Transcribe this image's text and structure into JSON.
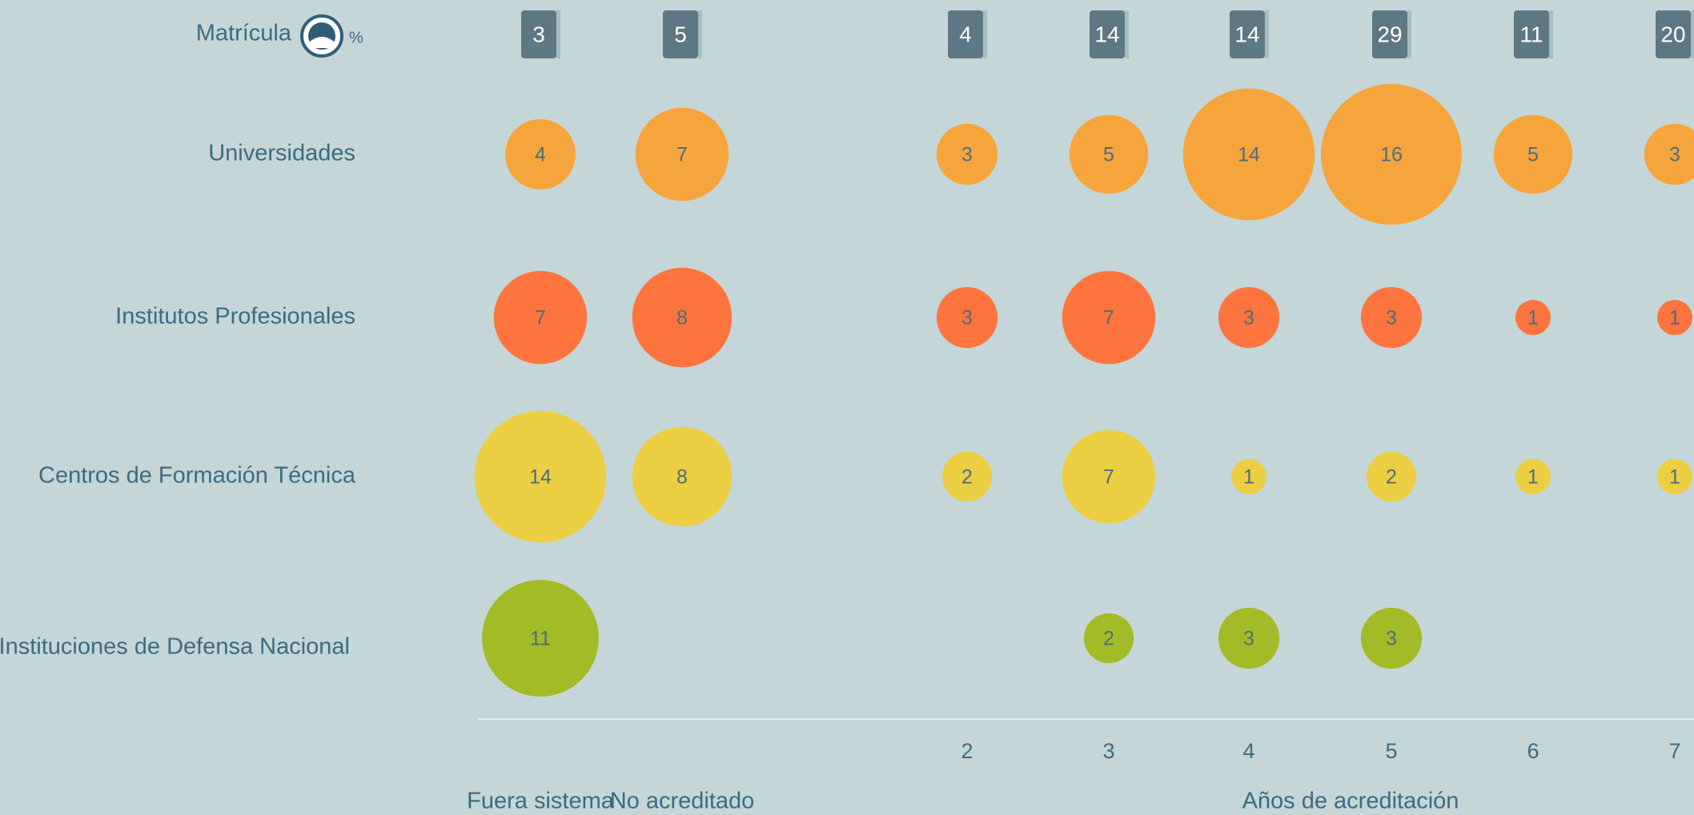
{
  "chart_data": {
    "type": "bubble",
    "matricula_label": "Matrícula",
    "matricula_unit": "%",
    "matricula": [
      3,
      5,
      4,
      14,
      14,
      29,
      11,
      20
    ],
    "categories": [
      "Fuera sistema",
      "No acreditado",
      "2",
      "3",
      "4",
      "5",
      "6",
      "7"
    ],
    "x_label": "Años de acreditación",
    "series": [
      {
        "name": "Universidades",
        "color": "#f6a53d",
        "values": [
          4,
          7,
          3,
          5,
          14,
          16,
          5,
          3
        ]
      },
      {
        "name": "Institutos Profesionales",
        "color": "#fe743e",
        "values": [
          7,
          8,
          3,
          7,
          3,
          3,
          1,
          1
        ]
      },
      {
        "name": "Centros de Formación Técnica",
        "color": "#ecce43",
        "values": [
          14,
          8,
          2,
          7,
          1,
          2,
          1,
          1
        ]
      },
      {
        "name": "Instituciones de Defensa Nacional",
        "color": "#a3bb27",
        "values": [
          11,
          null,
          null,
          2,
          3,
          3,
          null,
          null
        ]
      }
    ]
  }
}
